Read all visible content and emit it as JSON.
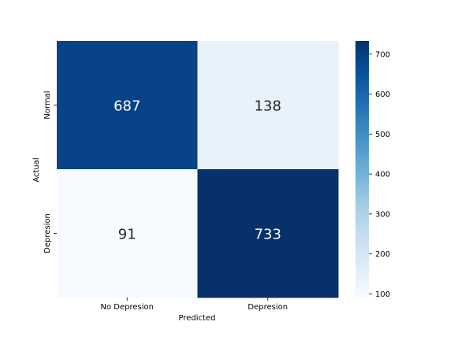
{
  "chart_data": {
    "type": "heatmap",
    "xlabel": "Predicted",
    "ylabel": "Actual",
    "x_categories": [
      "No Depresion",
      "Depresion"
    ],
    "y_categories": [
      "Normal",
      "Depresion"
    ],
    "values": [
      [
        687,
        138
      ],
      [
        91,
        733
      ]
    ],
    "colorbar": {
      "min": 91,
      "max": 733,
      "ticks": [
        100,
        200,
        300,
        400,
        500,
        600,
        700
      ]
    },
    "colormap": "Blues"
  }
}
